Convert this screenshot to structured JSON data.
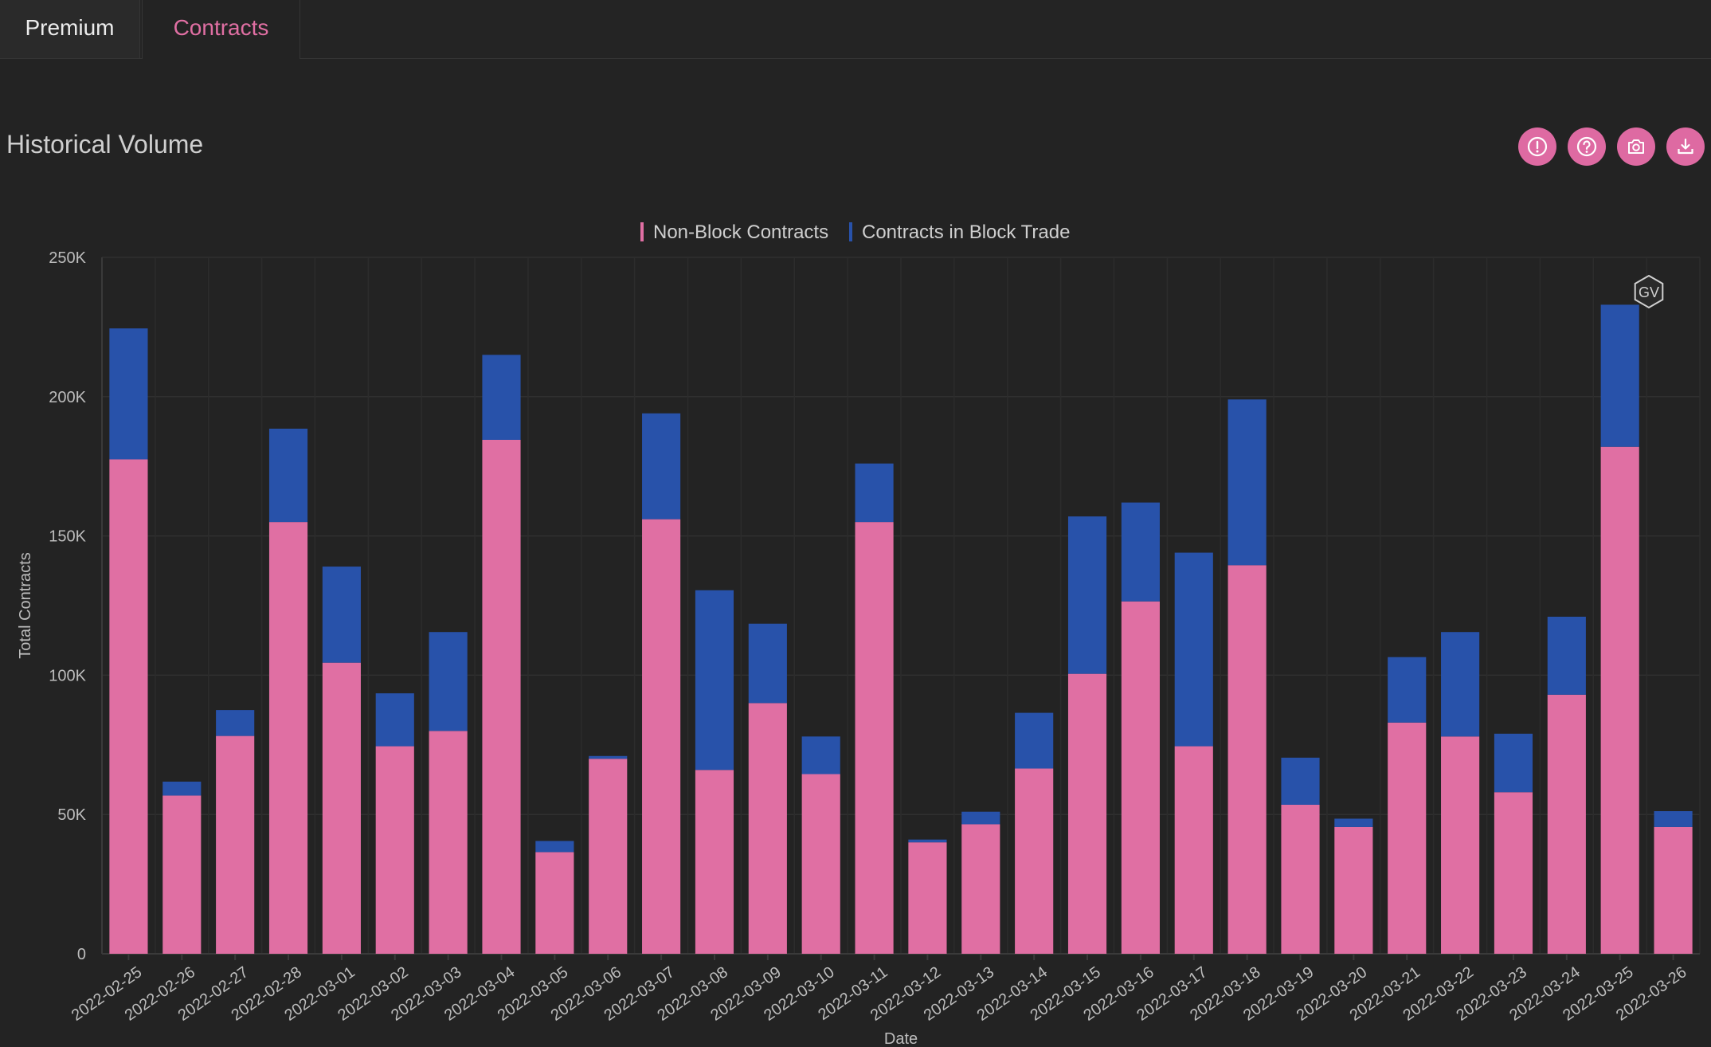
{
  "tabs": [
    {
      "label": "Premium",
      "active": false
    },
    {
      "label": "Contracts",
      "active": true
    }
  ],
  "section_title": "Historical Volume",
  "actions": [
    "info-icon",
    "help-icon",
    "camera-icon",
    "download-icon"
  ],
  "watermark": "GV",
  "colors": {
    "accent": "#e06fa3",
    "non_block": "#e06fa3",
    "block": "#2852aa",
    "background": "#232323"
  },
  "chart_data": {
    "type": "bar",
    "stacked": true,
    "legend_position": "top-center",
    "xlabel": "Date",
    "ylabel": "Total Contracts",
    "ylim": [
      0,
      250000
    ],
    "y_ticks": [
      0,
      50000,
      100000,
      150000,
      200000,
      250000
    ],
    "y_tick_labels": [
      "0",
      "50K",
      "100K",
      "150K",
      "200K",
      "250K"
    ],
    "grid": true,
    "categories": [
      "2022-02-25",
      "2022-02-26",
      "2022-02-27",
      "2022-02-28",
      "2022-03-01",
      "2022-03-02",
      "2022-03-03",
      "2022-03-04",
      "2022-03-05",
      "2022-03-06",
      "2022-03-07",
      "2022-03-08",
      "2022-03-09",
      "2022-03-10",
      "2022-03-11",
      "2022-03-12",
      "2022-03-13",
      "2022-03-14",
      "2022-03-15",
      "2022-03-16",
      "2022-03-17",
      "2022-03-18",
      "2022-03-19",
      "2022-03-20",
      "2022-03-21",
      "2022-03-22",
      "2022-03-23",
      "2022-03-24",
      "2022-03-25",
      "2022-03-26"
    ],
    "series": [
      {
        "name": "Non-Block Contracts",
        "color": "#e06fa3",
        "values": [
          177500,
          56800,
          78200,
          155000,
          104500,
          74500,
          80000,
          184500,
          36500,
          70000,
          156000,
          66000,
          90000,
          64500,
          155000,
          40000,
          46500,
          66500,
          100500,
          126500,
          74500,
          139500,
          53500,
          45500,
          83000,
          78000,
          58000,
          93000,
          182000,
          45500
        ]
      },
      {
        "name": "Contracts in Block Trade",
        "color": "#2852aa",
        "values": [
          47000,
          5000,
          9300,
          33500,
          34500,
          19000,
          35500,
          30500,
          4000,
          1000,
          38000,
          64500,
          28500,
          13500,
          21000,
          1000,
          4500,
          20000,
          56500,
          35500,
          69500,
          59500,
          16900,
          3000,
          23500,
          37500,
          21000,
          28000,
          51000,
          5700
        ]
      }
    ]
  }
}
